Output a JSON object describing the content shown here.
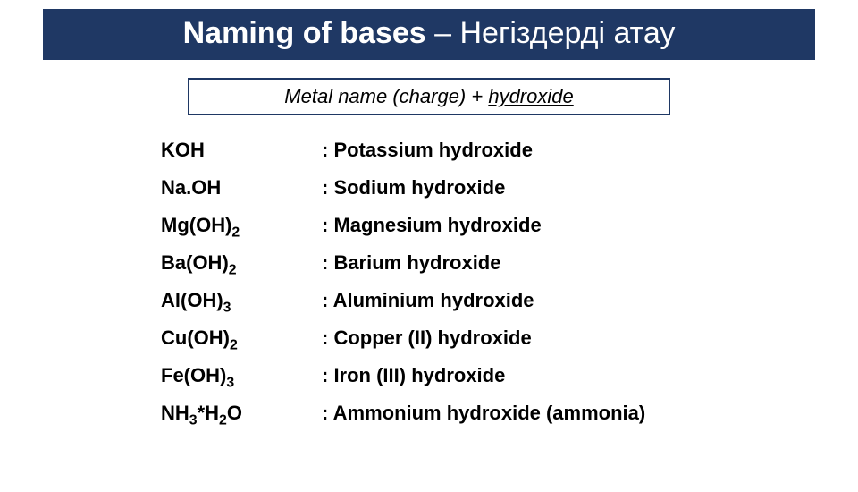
{
  "colors": {
    "header_bg": "#1f3864",
    "header_text": "#ffffff",
    "body_text": "#000000",
    "background": "#ffffff",
    "box_border": "#1f3864"
  },
  "typography": {
    "title_fontsize": 34,
    "subtitle_fontsize": 22,
    "row_fontsize": 22,
    "row_weight": "bold",
    "subtitle_style": "italic"
  },
  "title": {
    "bold_part": "Naming of bases",
    "rest_part": " – Негіздерді атау"
  },
  "subtitle": {
    "plain": "Metal name (charge) + ",
    "underlined": "hydroxide"
  },
  "rows": [
    {
      "formula_html": "KOH",
      "name": ": Potassium hydroxide"
    },
    {
      "formula_html": "Na.OH",
      "name": ": Sodium hydroxide"
    },
    {
      "formula_html": "Mg(OH)<span class='sub'>2</span>",
      "name": ": Magnesium hydroxide"
    },
    {
      "formula_html": "Ba(OH)<span class='sub'>2</span>",
      "name": ": Barium hydroxide"
    },
    {
      "formula_html": "Al(OH)<span class='sub'>3</span>",
      "name": ": Aluminium hydroxide"
    },
    {
      "formula_html": "Cu(OH)<span class='sub'>2</span>",
      "name": ": Copper (II) hydroxide"
    },
    {
      "formula_html": "Fe(OH)<span class='sub'>3</span>",
      "name": ": Iron (III) hydroxide"
    },
    {
      "formula_html": "NH<span class='sub'>3</span>*H<span class='sub'>2</span>O",
      "name": ": Ammonium hydroxide (ammonia)"
    }
  ]
}
